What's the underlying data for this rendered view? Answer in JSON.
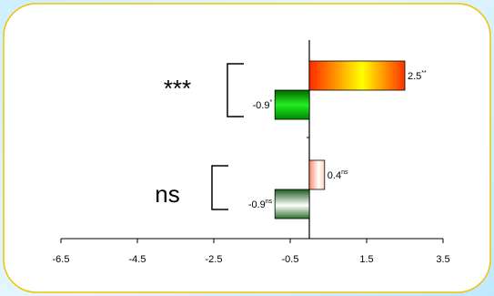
{
  "chart_data": {
    "type": "bar",
    "orientation": "horizontal",
    "title": "",
    "xlabel": "",
    "ylabel": "",
    "xlim": [
      -6.5,
      3.5
    ],
    "x_ticks": [
      -6.5,
      -4.5,
      -2.5,
      -0.5,
      1.5,
      3.5
    ],
    "x_tick_labels": [
      "-6.5",
      "-4.5",
      "-2.5",
      "-0.5",
      "1.5",
      "3.5"
    ],
    "grid": false,
    "legend": "none",
    "groups": [
      {
        "label": "***",
        "bars": [
          {
            "value": 2.5,
            "label": "2.5",
            "sig": "**",
            "fill": "red-yellow-gradient"
          },
          {
            "value": -0.9,
            "label": "-0.9",
            "sig": "*",
            "fill": "green-gradient"
          }
        ]
      },
      {
        "label": "ns",
        "bars": [
          {
            "value": 0.4,
            "label": "0.4",
            "sig": "ns",
            "fill": "pale-red-gradient"
          },
          {
            "value": -0.9,
            "label": "-0.9",
            "sig": "ns",
            "fill": "dark-green-white-gradient"
          }
        ]
      }
    ]
  },
  "colors": {
    "frame_border": "#f2c200",
    "frame_fill": "#ffffff",
    "background": "#d6f1ff",
    "axis": "#000000"
  }
}
